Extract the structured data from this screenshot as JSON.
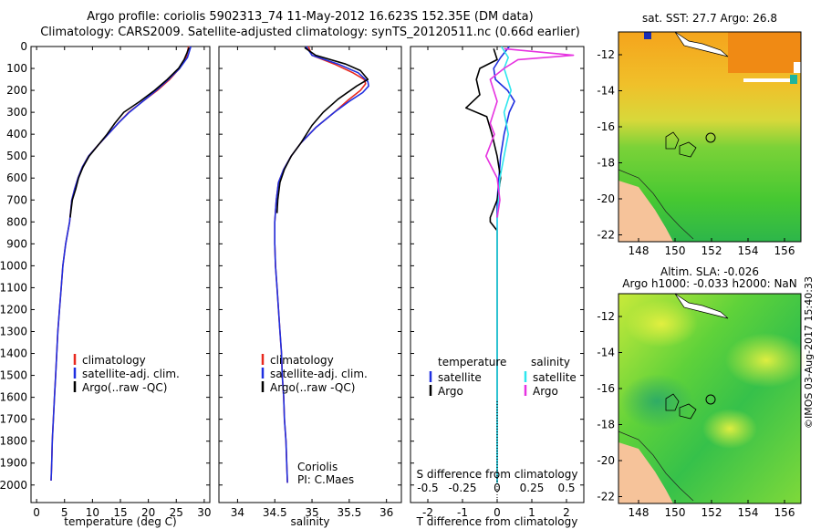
{
  "header": {
    "line1": "Argo profile: coriolis 5902313_74 11-May-2012 16.623S 152.35E (DM data)",
    "line2": "Climatology: CARS2009. Satellite-adjusted climatology: synTS_20120511.nc (0.66d earlier)"
  },
  "colors": {
    "climatology": "#e8281e",
    "satellite": "#1f2fe0",
    "argo": "#000000",
    "sal_sat": "#2ee6ee",
    "sal_argo": "#e633e0"
  },
  "chart_data": [
    {
      "id": "temperature",
      "type": "line",
      "xlabel": "temperature (deg C)",
      "ylabel": "",
      "xlim": [
        -1,
        31
      ],
      "ylim": [
        2080,
        0
      ],
      "xticks": [
        0,
        5,
        10,
        15,
        20,
        25,
        30
      ],
      "yticks": [
        0,
        100,
        200,
        300,
        400,
        500,
        600,
        700,
        800,
        900,
        1000,
        1100,
        1200,
        1300,
        1400,
        1500,
        1600,
        1700,
        1800,
        1900,
        2000
      ],
      "legend": [
        "climatology",
        "satellite-adj. clim.",
        "Argo(..raw -QC)"
      ],
      "series": [
        {
          "name": "climatology",
          "points": [
            [
              27.2,
              0
            ],
            [
              26.8,
              50
            ],
            [
              25.6,
              100
            ],
            [
              23.8,
              150
            ],
            [
              21.6,
              200
            ],
            [
              19.0,
              250
            ],
            [
              16.5,
              300
            ],
            [
              14.6,
              350
            ],
            [
              12.8,
              400
            ],
            [
              11.0,
              450
            ],
            [
              9.3,
              500
            ],
            [
              8.2,
              550
            ],
            [
              7.4,
              600
            ],
            [
              6.8,
              650
            ],
            [
              6.3,
              700
            ],
            [
              5.9,
              800
            ],
            [
              5.2,
              900
            ],
            [
              4.7,
              1000
            ],
            [
              4.4,
              1100
            ],
            [
              4.1,
              1200
            ],
            [
              3.8,
              1300
            ],
            [
              3.6,
              1400
            ],
            [
              3.4,
              1500
            ],
            [
              3.2,
              1600
            ],
            [
              3.0,
              1700
            ],
            [
              2.8,
              1800
            ],
            [
              2.7,
              1900
            ],
            [
              2.6,
              1980
            ]
          ]
        },
        {
          "name": "satellite-adj. clim.",
          "points": [
            [
              27.6,
              0
            ],
            [
              27.0,
              50
            ],
            [
              25.6,
              100
            ],
            [
              23.6,
              150
            ],
            [
              21.4,
              200
            ],
            [
              19.0,
              250
            ],
            [
              16.6,
              300
            ],
            [
              14.6,
              350
            ],
            [
              12.8,
              400
            ],
            [
              11.0,
              450
            ],
            [
              9.3,
              500
            ],
            [
              8.2,
              550
            ],
            [
              7.4,
              600
            ],
            [
              6.8,
              650
            ],
            [
              6.3,
              700
            ],
            [
              5.9,
              800
            ],
            [
              5.2,
              900
            ],
            [
              4.7,
              1000
            ],
            [
              4.4,
              1100
            ],
            [
              4.1,
              1200
            ],
            [
              3.8,
              1300
            ],
            [
              3.6,
              1400
            ],
            [
              3.4,
              1500
            ],
            [
              3.2,
              1600
            ],
            [
              3.0,
              1700
            ],
            [
              2.8,
              1800
            ],
            [
              2.7,
              1900
            ],
            [
              2.6,
              1980
            ]
          ]
        },
        {
          "name": "Argo(..raw -QC)",
          "points": [
            [
              27.3,
              5
            ],
            [
              26.9,
              30
            ],
            [
              26.4,
              60
            ],
            [
              25.4,
              100
            ],
            [
              23.4,
              150
            ],
            [
              21.1,
              200
            ],
            [
              18.5,
              250
            ],
            [
              15.6,
              300
            ],
            [
              14.0,
              350
            ],
            [
              12.6,
              400
            ],
            [
              11.0,
              450
            ],
            [
              9.4,
              500
            ],
            [
              8.3,
              550
            ],
            [
              7.5,
              600
            ],
            [
              7.0,
              650
            ],
            [
              6.4,
              700
            ],
            [
              6.0,
              780
            ]
          ]
        }
      ]
    },
    {
      "id": "salinity",
      "type": "line",
      "xlabel": "salinity",
      "xlim": [
        33.75,
        36.2
      ],
      "ylim": [
        2080,
        0
      ],
      "xticks": [
        34,
        34.5,
        35,
        35.5,
        36
      ],
      "yticks": [
        0,
        100,
        200,
        300,
        400,
        500,
        600,
        700,
        800,
        900,
        1000,
        1100,
        1200,
        1300,
        1400,
        1500,
        1600,
        1700,
        1800,
        1900,
        2000
      ],
      "legend": [
        "climatology",
        "satellite-adj. clim.",
        "Argo(..raw -QC)"
      ],
      "annotation": [
        "Coriolis",
        "PI: C.Maes"
      ],
      "series": [
        {
          "name": "climatology",
          "points": [
            [
              34.95,
              0
            ],
            [
              35.0,
              40
            ],
            [
              35.3,
              80
            ],
            [
              35.55,
              120
            ],
            [
              35.7,
              150
            ],
            [
              35.72,
              170
            ],
            [
              35.65,
              200
            ],
            [
              35.5,
              240
            ],
            [
              35.3,
              300
            ],
            [
              35.05,
              370
            ],
            [
              34.85,
              440
            ],
            [
              34.72,
              500
            ],
            [
              34.62,
              560
            ],
            [
              34.55,
              620
            ],
            [
              34.52,
              700
            ],
            [
              34.5,
              800
            ],
            [
              34.5,
              900
            ],
            [
              34.51,
              1000
            ],
            [
              34.53,
              1100
            ],
            [
              34.55,
              1200
            ],
            [
              34.57,
              1300
            ],
            [
              34.59,
              1400
            ],
            [
              34.6,
              1500
            ],
            [
              34.62,
              1600
            ],
            [
              34.63,
              1700
            ],
            [
              34.65,
              1800
            ],
            [
              34.66,
              1900
            ],
            [
              34.67,
              1990
            ]
          ]
        },
        {
          "name": "satellite-adj. clim.",
          "points": [
            [
              34.92,
              0
            ],
            [
              35.0,
              40
            ],
            [
              35.35,
              80
            ],
            [
              35.62,
              120
            ],
            [
              35.75,
              160
            ],
            [
              35.76,
              180
            ],
            [
              35.68,
              210
            ],
            [
              35.5,
              250
            ],
            [
              35.3,
              300
            ],
            [
              35.05,
              370
            ],
            [
              34.85,
              440
            ],
            [
              34.72,
              500
            ],
            [
              34.62,
              560
            ],
            [
              34.55,
              620
            ],
            [
              34.52,
              700
            ],
            [
              34.5,
              800
            ],
            [
              34.5,
              900
            ],
            [
              34.51,
              1000
            ],
            [
              34.53,
              1100
            ],
            [
              34.55,
              1200
            ],
            [
              34.57,
              1300
            ],
            [
              34.59,
              1400
            ],
            [
              34.6,
              1500
            ],
            [
              34.62,
              1600
            ],
            [
              34.63,
              1700
            ],
            [
              34.65,
              1800
            ],
            [
              34.66,
              1900
            ],
            [
              34.67,
              1990
            ]
          ]
        },
        {
          "name": "Argo(..raw -QC)",
          "points": [
            [
              34.9,
              5
            ],
            [
              35.05,
              40
            ],
            [
              35.45,
              80
            ],
            [
              35.65,
              110
            ],
            [
              35.75,
              150
            ],
            [
              35.6,
              180
            ],
            [
              35.35,
              240
            ],
            [
              35.15,
              300
            ],
            [
              35.0,
              360
            ],
            [
              34.85,
              440
            ],
            [
              34.72,
              500
            ],
            [
              34.63,
              560
            ],
            [
              34.57,
              620
            ],
            [
              34.54,
              700
            ],
            [
              34.53,
              760
            ]
          ]
        }
      ]
    },
    {
      "id": "differences",
      "type": "line",
      "xlabel": "T difference from climatology",
      "xlabel_top": "S difference from climatology",
      "xlim": [
        -2.5,
        2.5
      ],
      "ylim": [
        2080,
        0
      ],
      "xticks": [
        -2,
        -1,
        0,
        1,
        2
      ],
      "xtick_labels": [
        "-2",
        "-1",
        "0",
        "1",
        "2"
      ],
      "sticks": [
        -0.5,
        -0.25,
        0,
        0.25,
        0.5
      ],
      "stick_labels": [
        "-0.5",
        "-0.25",
        "0",
        "0.25",
        "0.5"
      ],
      "yticks": [
        0,
        100,
        200,
        300,
        400,
        500,
        600,
        700,
        800,
        900,
        1000,
        1100,
        1200,
        1300,
        1400,
        1500,
        1600,
        1700,
        1800,
        1900,
        2000
      ],
      "legend_titles": [
        "temperature",
        "salinity"
      ],
      "legend": [
        "satellite",
        "Argo",
        "satellite",
        "Argo"
      ],
      "series": [
        {
          "name": "T satellite",
          "points": [
            [
              0.35,
              0
            ],
            [
              0.1,
              50
            ],
            [
              -0.1,
              100
            ],
            [
              -0.05,
              150
            ],
            [
              0.3,
              200
            ],
            [
              0.5,
              250
            ],
            [
              0.35,
              300
            ],
            [
              0.2,
              400
            ],
            [
              0.1,
              500
            ],
            [
              0.05,
              600
            ],
            [
              0.0,
              700
            ],
            [
              0.0,
              800
            ],
            [
              0.0,
              1000
            ],
            [
              0.0,
              1300
            ],
            [
              0.0,
              1600
            ],
            [
              0.0,
              1990
            ]
          ]
        },
        {
          "name": "T Argo",
          "points": [
            [
              -0.1,
              10
            ],
            [
              0.0,
              60
            ],
            [
              -0.5,
              100
            ],
            [
              -0.6,
              150
            ],
            [
              -0.5,
              220
            ],
            [
              -0.9,
              280
            ],
            [
              -0.3,
              320
            ],
            [
              -0.15,
              400
            ],
            [
              0.0,
              500
            ],
            [
              0.1,
              600
            ],
            [
              0.0,
              700
            ],
            [
              -0.2,
              780
            ],
            [
              -0.2,
              800
            ],
            [
              0.0,
              840
            ],
            [
              0.0,
              1000
            ],
            [
              0.0,
              1300
            ],
            [
              0.0,
              1600
            ],
            [
              0.0,
              1990
            ]
          ]
        },
        {
          "name": "S satellite",
          "points": [
            [
              0.03,
              0
            ],
            [
              0.08,
              50
            ],
            [
              0.05,
              100
            ],
            [
              0.1,
              200
            ],
            [
              0.05,
              300
            ],
            [
              0.08,
              400
            ],
            [
              0.05,
              500
            ],
            [
              0.02,
              600
            ],
            [
              0.01,
              700
            ],
            [
              0.0,
              800
            ],
            [
              0.0,
              1000
            ],
            [
              0.0,
              1300
            ],
            [
              0.0,
              1600
            ],
            [
              0.0,
              1990
            ]
          ]
        },
        {
          "name": "S Argo",
          "points": [
            [
              0.05,
              10
            ],
            [
              0.55,
              40
            ],
            [
              0.15,
              60
            ],
            [
              0.05,
              100
            ],
            [
              -0.05,
              150
            ],
            [
              0.0,
              250
            ],
            [
              -0.05,
              350
            ],
            [
              -0.02,
              400
            ],
            [
              -0.08,
              500
            ],
            [
              0.0,
              600
            ],
            [
              0.02,
              700
            ],
            [
              0.0,
              780
            ]
          ]
        }
      ]
    }
  ],
  "maps": {
    "sst": {
      "title": "sat. SST: 27.7  Argo: 26.8",
      "xticks": [
        "148",
        "150",
        "152",
        "154",
        "156"
      ],
      "yticks": [
        "-12",
        "-14",
        "-16",
        "-18",
        "-20",
        "-22"
      ]
    },
    "sla": {
      "title1": "Altim. SLA: -0.026",
      "title2": "Argo h1000: -0.033  h2000: NaN",
      "xticks": [
        "148",
        "150",
        "152",
        "154",
        "156"
      ],
      "yticks": [
        "-12",
        "-14",
        "-16",
        "-18",
        "-20",
        "-22"
      ]
    }
  },
  "stamp": "©IMOS 03-Aug-2017 15:40:33"
}
